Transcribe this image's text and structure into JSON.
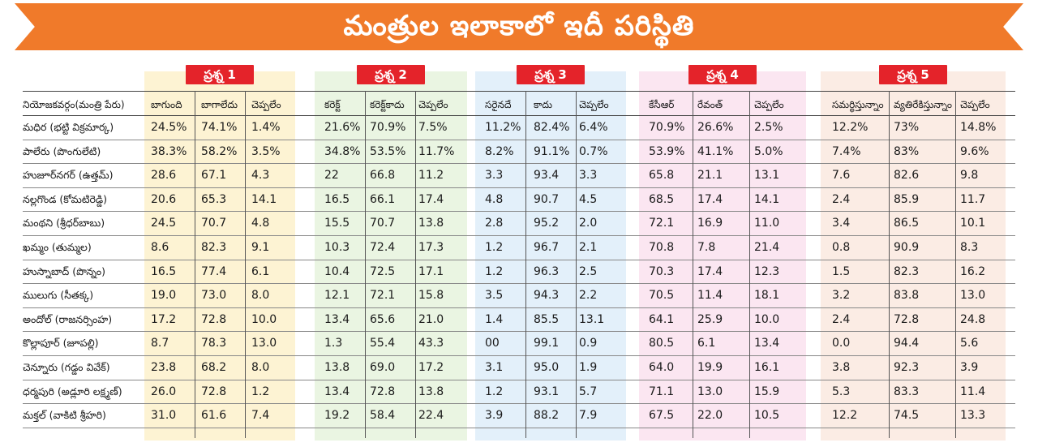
{
  "title": "మంత్రుల ఇలాకాలో ఇదీ పరిస్థితి",
  "row_header": "నియోజకవర్గం(మంత్రి పేరు)",
  "colors": {
    "banner": "#f07a2a",
    "question_tag": "#e4232a",
    "q1_bg": "#fdf3d3",
    "q2_bg": "#eaf5e2",
    "q3_bg": "#e3f0fa",
    "q4_bg": "#fbe6f1",
    "q5_bg": "#fbece4"
  },
  "questions": [
    {
      "label": "ప్రశ్న 1",
      "columns": [
        "బాగుంది",
        "బాగాలేదు",
        "చెప్పలేం"
      ]
    },
    {
      "label": "ప్రశ్న 2",
      "columns": [
        "కరెక్ట్",
        "కరెక్ట్‌కాదు",
        "చెప్పలేం"
      ]
    },
    {
      "label": "ప్రశ్న 3",
      "columns": [
        "సరైనదే",
        "కాదు",
        "చెప్పలేం"
      ]
    },
    {
      "label": "ప్రశ్న 4",
      "columns": [
        "కేసీఆర్",
        "రేవంత్",
        "చెప్పలేం"
      ]
    },
    {
      "label": "ప్రశ్న 5",
      "columns": [
        "సమర్థిస్తున్నాం",
        "వ్యతిరేకిస్తున్నాం",
        "చెప్పలేం"
      ]
    }
  ],
  "rows": [
    {
      "name": "మధిర (భట్టి విక్రమార్క)",
      "values": [
        "24.5%",
        "74.1%",
        "1.4%",
        "21.6%",
        "70.9%",
        "7.5%",
        "11.2%",
        "82.4%",
        "6.4%",
        "70.9%",
        "26.6%",
        "2.5%",
        "12.2%",
        "73%",
        "14.8%"
      ]
    },
    {
      "name": "పాలేరు (పొంగులేటి)",
      "values": [
        "38.3%",
        "58.2%",
        "3.5%",
        "34.8%",
        "53.5%",
        "11.7%",
        "8.2%",
        "91.1%",
        "0.7%",
        "53.9%",
        "41.1%",
        "5.0%",
        "7.4%",
        "83%",
        "9.6%"
      ]
    },
    {
      "name": "హుజూర్‌నగర్ (ఉత్తమ్)",
      "values": [
        "28.6",
        "67.1",
        "4.3",
        "22",
        "66.8",
        "11.2",
        "3.3",
        "93.4",
        "3.3",
        "65.8",
        "21.1",
        "13.1",
        "7.6",
        "82.6",
        "9.8"
      ]
    },
    {
      "name": "నల్లగొండ (కోమటిరెడ్డి)",
      "values": [
        "20.6",
        "65.3",
        "14.1",
        "16.5",
        "66.1",
        "17.4",
        "4.8",
        "90.7",
        "4.5",
        "68.5",
        "17.4",
        "14.1",
        "2.4",
        "85.9",
        "11.7"
      ]
    },
    {
      "name": "మంథని (శ్రీధర్‌బాబు)",
      "values": [
        "24.5",
        "70.7",
        "4.8",
        "15.5",
        "70.7",
        "13.8",
        "2.8",
        "95.2",
        "2.0",
        "72.1",
        "16.9",
        "11.0",
        "3.4",
        "86.5",
        "10.1"
      ]
    },
    {
      "name": "ఖమ్మం (తుమ్మల)",
      "values": [
        "8.6",
        "82.3",
        "9.1",
        "10.3",
        "72.4",
        "17.3",
        "1.2",
        "96.7",
        "2.1",
        "70.8",
        "7.8",
        "21.4",
        "0.8",
        "90.9",
        "8.3"
      ]
    },
    {
      "name": "హుస్నాబాద్ (పొన్నం)",
      "values": [
        "16.5",
        "77.4",
        "6.1",
        "10.4",
        "72.5",
        "17.1",
        "1.2",
        "96.3",
        "2.5",
        "70.3",
        "17.4",
        "12.3",
        "1.5",
        "82.3",
        "16.2"
      ]
    },
    {
      "name": "ములుగు (సీతక్క)",
      "values": [
        "19.0",
        "73.0",
        "8.0",
        "12.1",
        "72.1",
        "15.8",
        "3.5",
        "94.3",
        "2.2",
        "70.5",
        "11.4",
        "18.1",
        "3.2",
        "83.8",
        "13.0"
      ]
    },
    {
      "name": "అందోల్ (రాజనర్సింహ)",
      "values": [
        "17.2",
        "72.8",
        "10.0",
        "13.4",
        "65.6",
        "21.0",
        "1.4",
        "85.5",
        "13.1",
        "64.1",
        "25.9",
        "10.0",
        "2.4",
        "72.8",
        "24.8"
      ]
    },
    {
      "name": "కొల్లాపూర్ (జూపల్లి)",
      "values": [
        "8.7",
        "78.3",
        "13.0",
        "1.3",
        "55.4",
        "43.3",
        "00",
        "99.1",
        "0.9",
        "80.5",
        "6.1",
        "13.4",
        "0.0",
        "94.4",
        "5.6"
      ]
    },
    {
      "name": "చెన్నూరు (గడ్డం వివేక్)",
      "values": [
        "23.8",
        "68.2",
        "8.0",
        "13.8",
        "69.0",
        "17.2",
        "3.1",
        "95.0",
        "1.9",
        "64.0",
        "19.9",
        "16.1",
        "3.8",
        "92.3",
        "3.9"
      ]
    },
    {
      "name": "ధర్మపురి (అడ్లూరి లక్ష్మణ్)",
      "values": [
        "26.0",
        "72.8",
        "1.2",
        "13.4",
        "72.8",
        "13.8",
        "1.2",
        "93.1",
        "5.7",
        "71.1",
        "13.0",
        "15.9",
        "5.3",
        "83.3",
        "11.4"
      ]
    },
    {
      "name": "మక్తల్ (వాకిటి శ్రీహరి)",
      "values": [
        "31.0",
        "61.6",
        "7.4",
        "19.2",
        "58.4",
        "22.4",
        "3.9",
        "88.2",
        "7.9",
        "67.5",
        "22.0",
        "10.5",
        "12.2",
        "74.5",
        "13.3"
      ]
    }
  ]
}
